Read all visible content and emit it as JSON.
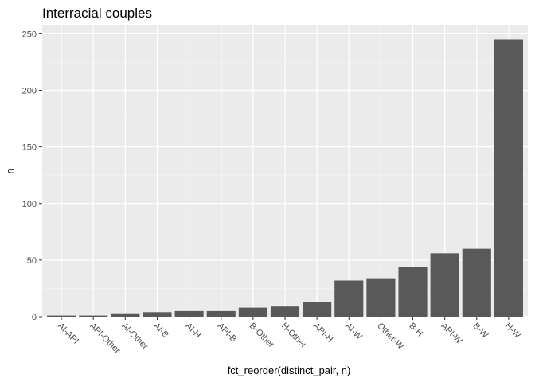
{
  "chart_data": {
    "type": "bar",
    "title": "Interracial couples",
    "xlabel": "fct_reorder(distinct_pair, n)",
    "ylabel": "n",
    "categories": [
      "AI-API",
      "API-Other",
      "AI-Other",
      "AI-B",
      "AI-H",
      "API-B",
      "B-Other",
      "H-Other",
      "API-H",
      "AI-W",
      "Other-W",
      "B-H",
      "API-W",
      "B-W",
      "H-W"
    ],
    "values": [
      1,
      1,
      3,
      4,
      5,
      5,
      8,
      9,
      13,
      32,
      34,
      44,
      56,
      60,
      245
    ],
    "ylim": [
      0,
      258
    ],
    "yticks": [
      0,
      50,
      100,
      150,
      200,
      250
    ],
    "grid": true,
    "colors": {
      "bar": "#595959",
      "panel": "#ebebeb",
      "grid_major": "#ffffff",
      "grid_minor": "#f5f5f5"
    }
  }
}
